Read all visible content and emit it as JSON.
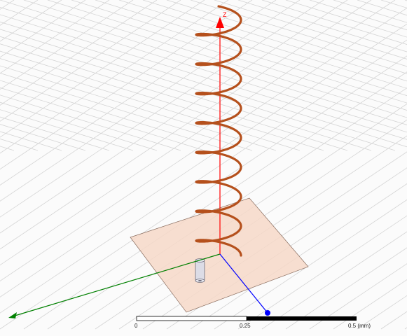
{
  "viewport": {
    "axes": {
      "z_label": "Z",
      "x_color": "#0000ff",
      "y_color": "#008000",
      "z_color": "#ff0000"
    },
    "colors": {
      "grid": "#d4d4d4",
      "background": "#fbfbfb",
      "helix": "#b5501c",
      "ground_plane_fill": "#f6d8c8",
      "ground_plane_stroke": "#8a6e60",
      "feed_probe": "#6b6b7a"
    },
    "helix": {
      "turns_visible": 8
    }
  },
  "scale_bar": {
    "labels": [
      "0",
      "0.25",
      "0.5 (mm)"
    ]
  }
}
